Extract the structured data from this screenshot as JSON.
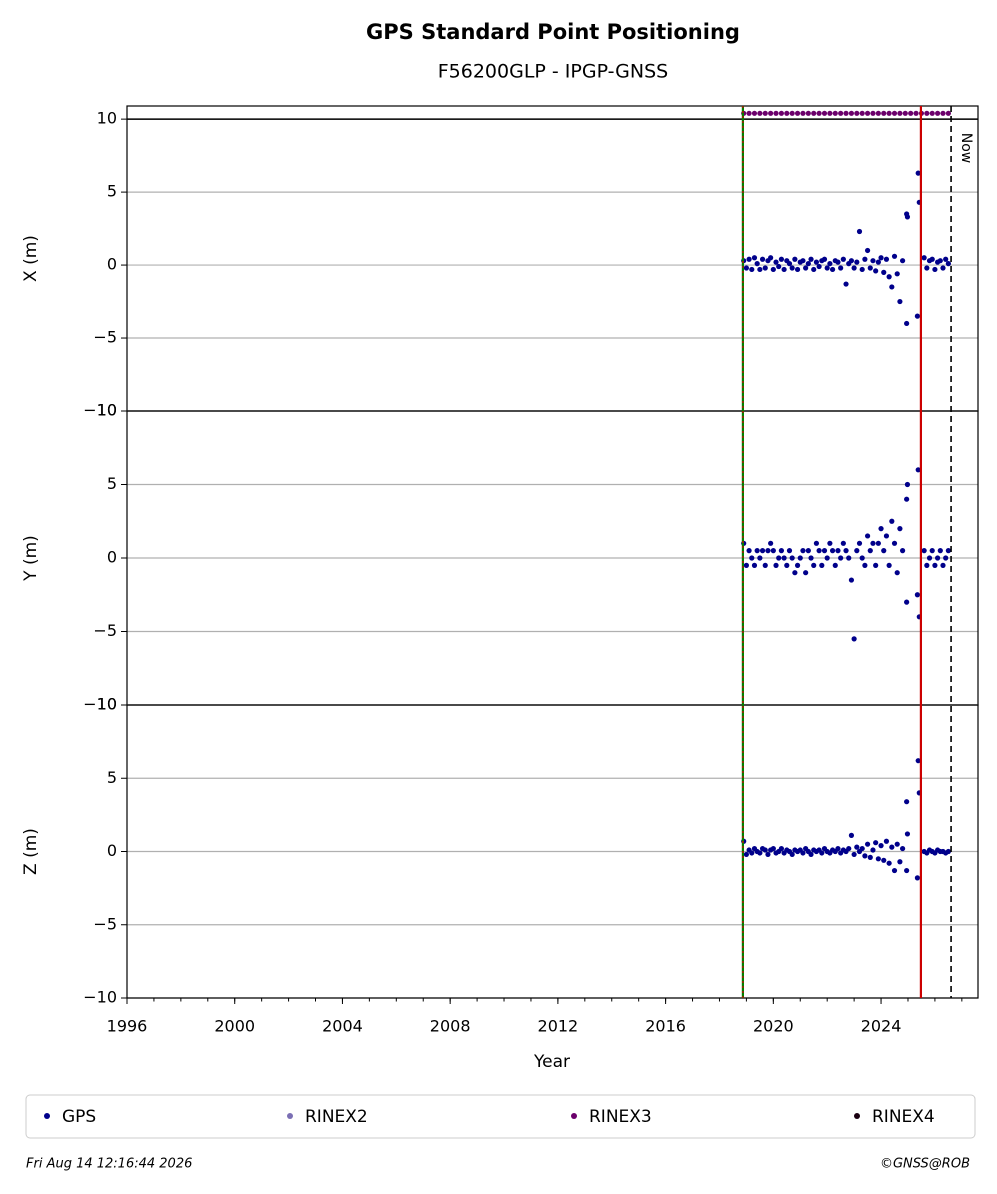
{
  "title": "GPS Standard Point Positioning",
  "subtitle": "F56200GLP - IPGP-GNSS",
  "x_axis": {
    "label": "Year",
    "xlim": [
      1996,
      2027.6
    ],
    "xticks": [
      1996,
      2000,
      2004,
      2008,
      2012,
      2016,
      2020,
      2024
    ],
    "minor_step": 1
  },
  "markers": [
    {
      "x": 2018.87,
      "color": "#008000",
      "overlay": "#d40000"
    },
    {
      "x": 2025.48,
      "color": "#cc0000"
    },
    {
      "x": 2026.6,
      "color": "#000000",
      "dash": true,
      "label": "Now"
    }
  ],
  "legend": [
    {
      "name": "GPS",
      "color": "#00008b"
    },
    {
      "name": "RINEX2",
      "color": "#7b6fb4"
    },
    {
      "name": "RINEX3",
      "color": "#6b006b"
    },
    {
      "name": "RINEX4",
      "color": "#1a0010"
    }
  ],
  "footer": {
    "left": "Fri Aug 14 12:16:44 2026",
    "right": "©GNSS@ROB"
  },
  "chart_data": [
    {
      "type": "scatter",
      "ylabel": "X (m)",
      "ylim": [
        -10,
        10.9
      ],
      "grid": true,
      "hlines": [
        10
      ],
      "yticks": [
        {
          "value": -10,
          "label": "−10"
        },
        {
          "value": -5,
          "label": "−5"
        },
        0,
        5,
        10
      ],
      "series": [
        {
          "name": "GPS",
          "color": "#00008b",
          "x": [
            2018.9,
            2019,
            2019.1,
            2019.2,
            2019.3,
            2019.4,
            2019.5,
            2019.6,
            2019.7,
            2019.8,
            2019.9,
            2020,
            2020.1,
            2020.2,
            2020.3,
            2020.4,
            2020.5,
            2020.6,
            2020.7,
            2020.8,
            2020.9,
            2021,
            2021.1,
            2021.2,
            2021.3,
            2021.4,
            2021.5,
            2021.6,
            2021.7,
            2021.8,
            2021.9,
            2022,
            2022.1,
            2022.2,
            2022.3,
            2022.4,
            2022.5,
            2022.6,
            2022.7,
            2022.8,
            2022.9,
            2023,
            2023.1,
            2023.2,
            2023.3,
            2023.4,
            2023.5,
            2023.6,
            2023.7,
            2023.8,
            2023.9,
            2024,
            2024.1,
            2024.2,
            2024.3,
            2024.4,
            2024.5,
            2024.6,
            2024.7,
            2024.8,
            2024.95,
            2024.95,
            2024.98,
            2025.38,
            2025.42,
            2025.35,
            2025.6,
            2025.7,
            2025.8,
            2025.9,
            2026,
            2026.1,
            2026.2,
            2026.3,
            2026.4,
            2026.5
          ],
          "values": [
            0.3,
            -0.2,
            0.4,
            -0.3,
            0.5,
            0.1,
            -0.3,
            0.4,
            -0.2,
            0.3,
            0.5,
            -0.3,
            0.2,
            -0.1,
            0.4,
            -0.3,
            0.3,
            0.1,
            -0.2,
            0.4,
            -0.3,
            0.2,
            0.3,
            -0.2,
            0.1,
            0.4,
            -0.3,
            0.2,
            -0.1,
            0.3,
            0.4,
            -0.2,
            0.1,
            -0.3,
            0.3,
            0.2,
            -0.2,
            0.4,
            -1.3,
            0.1,
            0.3,
            -0.2,
            0.2,
            2.3,
            -0.3,
            0.4,
            1.0,
            -0.2,
            0.3,
            -0.4,
            0.2,
            0.5,
            -0.5,
            0.4,
            -0.8,
            -1.5,
            0.6,
            -0.6,
            -2.5,
            0.3,
            3.5,
            -4.0,
            3.3,
            6.3,
            4.3,
            -3.5,
            0.5,
            -0.2,
            0.3,
            0.4,
            -0.3,
            0.2,
            0.3,
            -0.2,
            0.4,
            0.1
          ]
        },
        {
          "name": "RINEX3",
          "color": "#6b006b",
          "x": [
            2018.9,
            2019.1,
            2019.3,
            2019.5,
            2019.7,
            2019.9,
            2020.1,
            2020.3,
            2020.5,
            2020.7,
            2020.9,
            2021.1,
            2021.3,
            2021.5,
            2021.7,
            2021.9,
            2022.1,
            2022.3,
            2022.5,
            2022.7,
            2022.9,
            2023.1,
            2023.3,
            2023.5,
            2023.7,
            2023.9,
            2024.1,
            2024.3,
            2024.5,
            2024.7,
            2024.9,
            2025.1,
            2025.3,
            2025.5,
            2025.7,
            2025.9,
            2026.1,
            2026.3,
            2026.5
          ],
          "values": [
            10.4,
            10.4,
            10.4,
            10.4,
            10.4,
            10.4,
            10.4,
            10.4,
            10.4,
            10.4,
            10.4,
            10.4,
            10.4,
            10.4,
            10.4,
            10.4,
            10.4,
            10.4,
            10.4,
            10.4,
            10.4,
            10.4,
            10.4,
            10.4,
            10.4,
            10.4,
            10.4,
            10.4,
            10.4,
            10.4,
            10.4,
            10.4,
            10.4,
            10.4,
            10.4,
            10.4,
            10.4,
            10.4,
            10.4
          ]
        }
      ]
    },
    {
      "type": "scatter",
      "ylabel": "Y (m)",
      "ylim": [
        -10,
        10
      ],
      "grid": true,
      "yticks": [
        {
          "value": -10,
          "label": "−10"
        },
        {
          "value": -5,
          "label": "−5"
        },
        0,
        5,
        10
      ],
      "series": [
        {
          "name": "GPS",
          "color": "#00008b",
          "x": [
            2018.9,
            2019,
            2019.1,
            2019.2,
            2019.3,
            2019.4,
            2019.5,
            2019.6,
            2019.7,
            2019.8,
            2019.9,
            2020,
            2020.1,
            2020.2,
            2020.3,
            2020.4,
            2020.5,
            2020.6,
            2020.7,
            2020.8,
            2020.9,
            2021,
            2021.1,
            2021.2,
            2021.3,
            2021.4,
            2021.5,
            2021.6,
            2021.7,
            2021.8,
            2021.9,
            2022,
            2022.1,
            2022.2,
            2022.3,
            2022.4,
            2022.5,
            2022.6,
            2022.7,
            2022.8,
            2022.9,
            2023,
            2023.1,
            2023.2,
            2023.3,
            2023.4,
            2023.5,
            2023.6,
            2023.7,
            2023.8,
            2023.9,
            2024,
            2024.1,
            2024.2,
            2024.3,
            2024.4,
            2024.5,
            2024.6,
            2024.7,
            2024.8,
            2024.95,
            2024.95,
            2024.98,
            2025.38,
            2025.42,
            2025.35,
            2025.6,
            2025.7,
            2025.8,
            2025.9,
            2026,
            2026.1,
            2026.2,
            2026.3,
            2026.4,
            2026.5
          ],
          "values": [
            1.0,
            -0.5,
            0.5,
            0,
            -0.5,
            0.5,
            0,
            0.5,
            -0.5,
            0.5,
            1.0,
            0.5,
            -0.5,
            0,
            0.5,
            0,
            -0.5,
            0.5,
            0,
            -1.0,
            -0.5,
            0,
            0.5,
            -1.0,
            0.5,
            0,
            -0.5,
            1.0,
            0.5,
            -0.5,
            0.5,
            0,
            1.0,
            0.5,
            -0.5,
            0.5,
            0,
            1.0,
            0.5,
            0,
            -1.5,
            -5.5,
            0.5,
            1.0,
            0,
            -0.5,
            1.5,
            0.5,
            1.0,
            -0.5,
            1.0,
            2.0,
            0.5,
            1.5,
            -0.5,
            2.5,
            1.0,
            -1.0,
            2.0,
            0.5,
            4.0,
            -3.0,
            5.0,
            6.0,
            -4.0,
            -2.5,
            0.5,
            -0.5,
            0,
            0.5,
            -0.5,
            0,
            0.5,
            -0.5,
            0,
            0.5
          ]
        }
      ]
    },
    {
      "type": "scatter",
      "ylabel": "Z (m)",
      "ylim": [
        -10,
        10
      ],
      "grid": true,
      "yticks": [
        {
          "value": -10,
          "label": "−10"
        },
        {
          "value": -5,
          "label": "−5"
        },
        0,
        5,
        10
      ],
      "series": [
        {
          "name": "GPS",
          "color": "#00008b",
          "x": [
            2018.9,
            2019,
            2019.1,
            2019.2,
            2019.3,
            2019.4,
            2019.5,
            2019.6,
            2019.7,
            2019.8,
            2019.9,
            2020,
            2020.1,
            2020.2,
            2020.3,
            2020.4,
            2020.5,
            2020.6,
            2020.7,
            2020.8,
            2020.9,
            2021,
            2021.1,
            2021.2,
            2021.3,
            2021.4,
            2021.5,
            2021.6,
            2021.7,
            2021.8,
            2021.9,
            2022,
            2022.1,
            2022.2,
            2022.3,
            2022.4,
            2022.5,
            2022.6,
            2022.7,
            2022.8,
            2022.9,
            2023,
            2023.1,
            2023.2,
            2023.3,
            2023.4,
            2023.5,
            2023.6,
            2023.7,
            2023.8,
            2023.9,
            2024,
            2024.1,
            2024.2,
            2024.3,
            2024.4,
            2024.5,
            2024.6,
            2024.7,
            2024.8,
            2024.95,
            2024.95,
            2024.98,
            2025.38,
            2025.42,
            2025.35,
            2025.6,
            2025.7,
            2025.8,
            2025.9,
            2026,
            2026.1,
            2026.2,
            2026.3,
            2026.4,
            2026.5
          ],
          "values": [
            0.7,
            -0.2,
            0.1,
            -0.1,
            0.2,
            0,
            -0.1,
            0.2,
            0.1,
            -0.2,
            0.1,
            0.2,
            -0.1,
            0,
            0.2,
            -0.1,
            0.1,
            0,
            -0.2,
            0.1,
            0,
            0.1,
            -0.1,
            0.2,
            0,
            -0.2,
            0.1,
            0,
            0.1,
            -0.1,
            0.2,
            0,
            -0.1,
            0.1,
            0,
            0.2,
            -0.1,
            0.1,
            0,
            0.2,
            1.1,
            -0.2,
            0.3,
            0,
            0.2,
            -0.3,
            0.5,
            -0.4,
            0.1,
            0.6,
            -0.5,
            0.4,
            -0.6,
            0.7,
            -0.8,
            0.3,
            -1.3,
            0.5,
            -0.7,
            0.2,
            3.4,
            -1.3,
            1.2,
            6.2,
            4.0,
            -1.8,
            0,
            -0.1,
            0.1,
            0,
            -0.1,
            0.1,
            0,
            0,
            -0.1,
            0
          ]
        }
      ]
    }
  ]
}
